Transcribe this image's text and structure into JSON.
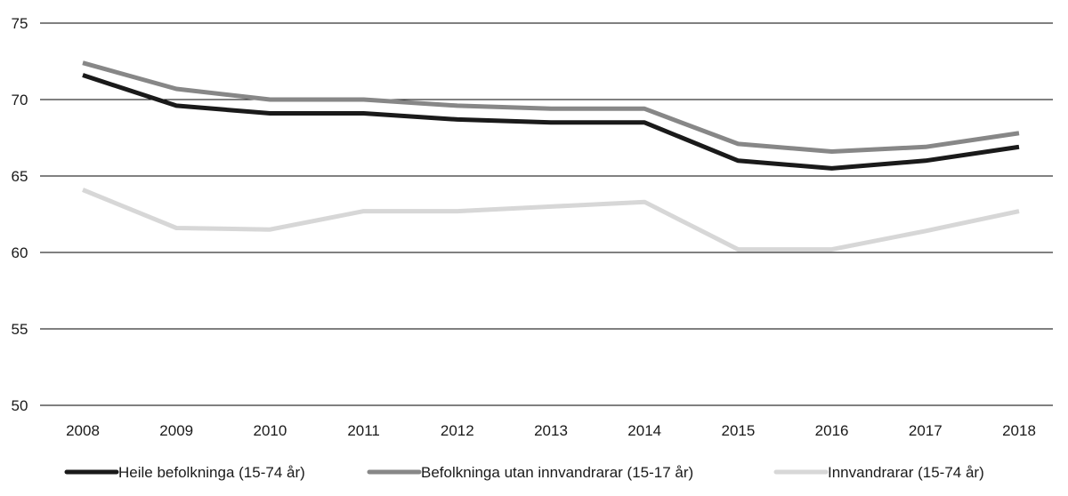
{
  "chart_data": {
    "type": "line",
    "title": "",
    "xlabel": "",
    "ylabel": "",
    "ylim": [
      50,
      75
    ],
    "yticks": [
      50,
      55,
      60,
      65,
      70,
      75
    ],
    "grid": "horizontal",
    "legend_position": "bottom",
    "x": [
      "2008",
      "2009",
      "2010",
      "2011",
      "2012",
      "2013",
      "2014",
      "2015",
      "2016",
      "2017",
      "2018"
    ],
    "series": [
      {
        "name": "Heile befolkninga (15-74 år)",
        "color": "#1a1a1a",
        "values": [
          71.6,
          69.6,
          69.1,
          69.1,
          68.7,
          68.5,
          68.5,
          66.0,
          65.5,
          66.0,
          66.9
        ]
      },
      {
        "name": "Befolkninga utan innvandrarar (15-17 år)",
        "color": "#878787",
        "values": [
          72.4,
          70.7,
          70.0,
          70.0,
          69.6,
          69.4,
          69.4,
          67.1,
          66.6,
          66.9,
          67.8
        ]
      },
      {
        "name": "Innvandrarar (15-74 år)",
        "color": "#d7d7d7",
        "values": [
          64.1,
          61.6,
          61.5,
          62.7,
          62.7,
          63.0,
          63.3,
          60.2,
          60.2,
          61.4,
          62.7
        ]
      }
    ]
  }
}
